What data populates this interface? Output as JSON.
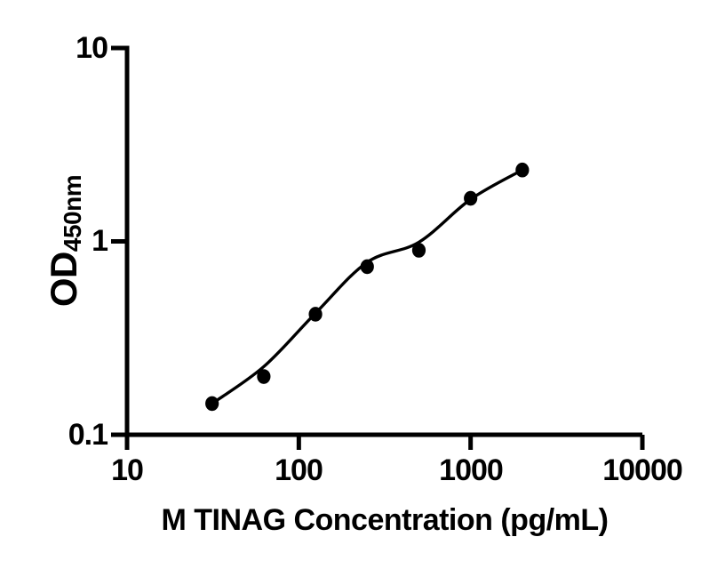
{
  "figure": {
    "background": "#ffffff",
    "ink_color": "#000000"
  },
  "chart_data": {
    "type": "scatter",
    "subtype": "standard-curve-with-fit-line",
    "title": "",
    "xlabel": "M TINAG Concentration (pg/mL)",
    "ylabel": "OD",
    "ylabel_subscript": "450nm",
    "x_scale": "log10",
    "y_scale": "log10",
    "xlim": [
      10,
      10000
    ],
    "ylim": [
      0.1,
      10
    ],
    "grid": false,
    "legend": false,
    "x_ticks": [
      {
        "value": 10,
        "label": "10"
      },
      {
        "value": 100,
        "label": "100"
      },
      {
        "value": 1000,
        "label": "1000"
      },
      {
        "value": 10000,
        "label": "10000"
      }
    ],
    "y_ticks": [
      {
        "value": 10,
        "label": "10"
      },
      {
        "value": 1,
        "label": "1"
      },
      {
        "value": 0.1,
        "label": "0.1"
      }
    ],
    "series": [
      {
        "name": "standard-points",
        "render": "markers",
        "marker": "filled-circle",
        "x": [
          31.25,
          62.5,
          125,
          250,
          500,
          1000,
          2000
        ],
        "y": [
          0.145,
          0.2,
          0.42,
          0.74,
          0.9,
          1.67,
          2.34
        ]
      },
      {
        "name": "fit-line",
        "render": "smooth-line",
        "x": [
          31.25,
          62.5,
          125,
          250,
          500,
          1000,
          2000
        ],
        "y": [
          0.145,
          0.225,
          0.425,
          0.78,
          0.99,
          1.65,
          2.34
        ]
      }
    ]
  }
}
